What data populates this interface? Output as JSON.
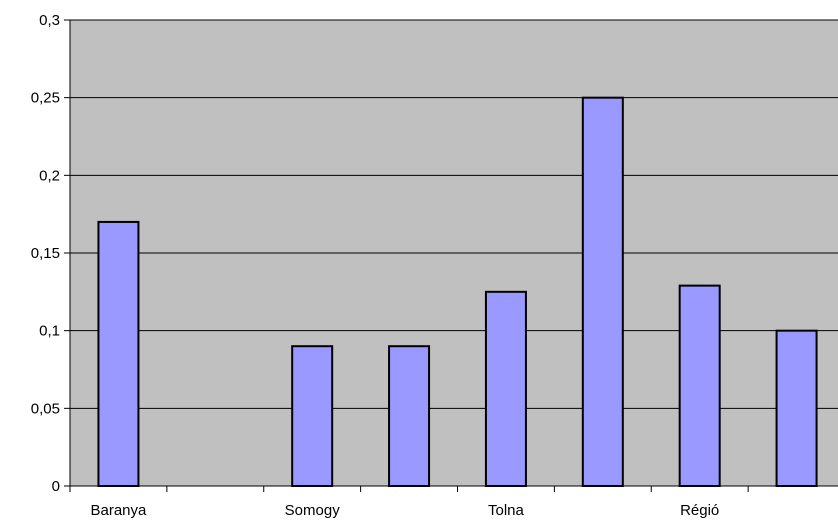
{
  "chart_data": {
    "type": "bar",
    "title": "",
    "xlabel": "",
    "ylabel": "",
    "categories": [
      "Baranya",
      "",
      "Somogy",
      "",
      "Tolna",
      "",
      "Régió",
      ""
    ],
    "category_labels": [
      "Baranya",
      "Somogy",
      "Tolna",
      "Régió"
    ],
    "values": [
      0.17,
      0,
      0.09,
      0.09,
      0.125,
      0.25,
      0.129,
      0.1
    ],
    "ylim": [
      0,
      0.3
    ],
    "y_ticks": [
      0,
      0.05,
      0.1,
      0.15,
      0.2,
      0.25,
      0.3
    ],
    "y_tick_labels": [
      "0",
      "0,05",
      "0,1",
      "0,15",
      "0,2",
      "0,25",
      "0,3"
    ],
    "grid": true,
    "legend": "none",
    "colors": {
      "plot_background": "#c0c0c0",
      "bar_fill": "#9999ff",
      "bar_stroke": "#000000",
      "gridline": "#000000"
    }
  }
}
